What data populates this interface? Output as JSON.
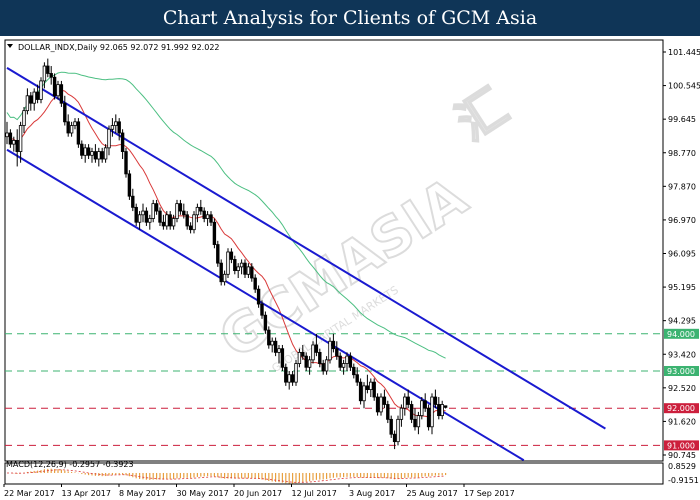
{
  "header": {
    "title": "Chart Analysis for Clients of GCM Asia"
  },
  "watermark": {
    "main": "GCMASIA",
    "sub": "GLOBAL CAPITAL MARKETS",
    "chinese": "汇"
  },
  "chart_data": {
    "type": "candlestick",
    "info_label": "DOLLAR_INDX,Daily  92.065 92.072 91.992 92.022",
    "symbol": "DOLLAR_INDX",
    "timeframe": "Daily",
    "ohlc_last": [
      92.065,
      92.072,
      91.992,
      92.022
    ],
    "y_range": [
      90.58,
      101.9
    ],
    "y_ticks": [
      "101.445",
      "100.545",
      "99.645",
      "98.770",
      "97.870",
      "96.970",
      "96.095",
      "95.195",
      "94.295",
      "93.420",
      "92.520",
      "91.620",
      "90.745"
    ],
    "x_ticks": [
      "22 Mar 2017",
      "13 Apr 2017",
      "8 May 2017",
      "30 May 2017",
      "20 Jun 2017",
      "12 Jul 2017",
      "3 Aug 2017",
      "25 Aug 2017",
      "17 Sep 2017"
    ],
    "levels": [
      {
        "value": 94.0,
        "label": "94.000",
        "color": "#3cb371",
        "style": "dashed"
      },
      {
        "value": 93.0,
        "label": "93.000",
        "color": "#3cb371",
        "style": "dashed"
      },
      {
        "value": 92.0,
        "label": "92.000",
        "color": "#cc1f3c",
        "style": "dashed"
      },
      {
        "value": 91.0,
        "label": "91.000",
        "color": "#cc1f3c",
        "style": "dashed"
      }
    ],
    "channel": {
      "color": "#1a1ad0",
      "upper": [
        [
          0,
          101.15
        ],
        [
          176,
          91.45
        ]
      ],
      "lower": [
        [
          0,
          98.95
        ],
        [
          152,
          90.6
        ]
      ]
    },
    "ma_fast_color": "#d93a3a",
    "ma_slow_color": "#4cbf82",
    "candles": [
      [
        99.3,
        99.7,
        99.1,
        99.4
      ],
      [
        99.4,
        99.5,
        99.0,
        99.1
      ],
      [
        99.1,
        99.3,
        98.9,
        99.2
      ],
      [
        99.2,
        99.5,
        98.5,
        98.9
      ],
      [
        98.9,
        99.7,
        98.6,
        99.6
      ],
      [
        99.6,
        100.1,
        99.4,
        100.0
      ],
      [
        100.0,
        100.6,
        99.9,
        100.4
      ],
      [
        100.4,
        100.5,
        100.0,
        100.2
      ],
      [
        100.2,
        100.6,
        100.0,
        100.5
      ],
      [
        100.5,
        100.7,
        100.2,
        100.3
      ],
      [
        100.3,
        100.9,
        100.2,
        100.8
      ],
      [
        100.8,
        101.3,
        100.6,
        101.2
      ],
      [
        101.2,
        101.4,
        100.9,
        101.0
      ],
      [
        101.0,
        101.2,
        100.7,
        100.9
      ],
      [
        100.9,
        101.0,
        100.3,
        100.4
      ],
      [
        100.4,
        100.8,
        100.3,
        100.7
      ],
      [
        100.7,
        100.8,
        100.1,
        100.2
      ],
      [
        100.2,
        100.4,
        99.6,
        99.7
      ],
      [
        99.7,
        99.9,
        99.3,
        99.4
      ],
      [
        99.4,
        99.7,
        99.3,
        99.6
      ],
      [
        99.6,
        99.8,
        99.5,
        99.7
      ],
      [
        99.7,
        99.8,
        99.0,
        99.1
      ],
      [
        99.1,
        99.2,
        98.7,
        98.8
      ],
      [
        98.8,
        99.1,
        98.6,
        99.0
      ],
      [
        99.0,
        99.1,
        98.7,
        98.8
      ],
      [
        98.8,
        99.0,
        98.6,
        98.9
      ],
      [
        98.9,
        99.1,
        98.6,
        98.7
      ],
      [
        98.7,
        99.0,
        98.5,
        98.9
      ],
      [
        98.9,
        99.0,
        98.6,
        98.7
      ],
      [
        98.7,
        99.1,
        98.6,
        99.0
      ],
      [
        99.0,
        99.6,
        98.8,
        99.5
      ],
      [
        99.5,
        99.8,
        99.3,
        99.6
      ],
      [
        99.6,
        99.9,
        99.4,
        99.7
      ],
      [
        99.7,
        99.8,
        99.2,
        99.4
      ],
      [
        99.4,
        99.5,
        98.7,
        98.9
      ],
      [
        98.9,
        99.0,
        98.2,
        98.3
      ],
      [
        98.3,
        98.4,
        97.6,
        97.7
      ],
      [
        97.7,
        97.9,
        97.3,
        97.4
      ],
      [
        97.4,
        97.5,
        96.9,
        97.0
      ],
      [
        97.0,
        97.3,
        96.8,
        97.2
      ],
      [
        97.2,
        97.5,
        97.0,
        97.3
      ],
      [
        97.3,
        97.4,
        96.9,
        97.0
      ],
      [
        97.0,
        97.2,
        96.8,
        97.1
      ],
      [
        97.1,
        97.6,
        97.0,
        97.5
      ],
      [
        97.5,
        97.6,
        97.2,
        97.3
      ],
      [
        97.3,
        97.4,
        96.9,
        97.0
      ],
      [
        97.0,
        97.2,
        96.8,
        96.9
      ],
      [
        96.9,
        97.3,
        96.8,
        97.2
      ],
      [
        97.2,
        97.3,
        96.8,
        96.9
      ],
      [
        96.9,
        97.2,
        96.8,
        97.1
      ],
      [
        97.1,
        97.6,
        97.0,
        97.5
      ],
      [
        97.5,
        97.6,
        97.2,
        97.3
      ],
      [
        97.3,
        97.5,
        97.1,
        97.2
      ],
      [
        97.2,
        97.3,
        96.8,
        96.9
      ],
      [
        96.9,
        97.0,
        96.7,
        96.8
      ],
      [
        96.8,
        97.3,
        96.7,
        97.2
      ],
      [
        97.2,
        97.5,
        97.0,
        97.4
      ],
      [
        97.4,
        97.6,
        97.2,
        97.3
      ],
      [
        97.3,
        97.4,
        97.0,
        97.1
      ],
      [
        97.1,
        97.3,
        96.9,
        97.2
      ],
      [
        97.2,
        97.3,
        96.9,
        97.0
      ],
      [
        97.0,
        97.1,
        96.3,
        96.4
      ],
      [
        96.4,
        96.5,
        95.8,
        95.9
      ],
      [
        95.9,
        96.0,
        95.3,
        95.4
      ],
      [
        95.4,
        95.7,
        95.3,
        95.6
      ],
      [
        95.6,
        96.3,
        95.5,
        96.2
      ],
      [
        96.2,
        96.3,
        95.9,
        96.0
      ],
      [
        96.0,
        96.1,
        95.6,
        95.7
      ],
      [
        95.7,
        95.9,
        95.5,
        95.8
      ],
      [
        95.8,
        96.0,
        95.6,
        95.9
      ],
      [
        95.9,
        96.0,
        95.5,
        95.6
      ],
      [
        95.6,
        95.9,
        95.5,
        95.8
      ],
      [
        95.8,
        95.9,
        95.4,
        95.5
      ],
      [
        95.5,
        95.6,
        95.1,
        95.2
      ],
      [
        95.2,
        95.3,
        94.7,
        94.8
      ],
      [
        94.8,
        94.9,
        94.4,
        94.5
      ],
      [
        94.5,
        94.6,
        94.0,
        94.1
      ],
      [
        94.1,
        94.2,
        93.6,
        93.7
      ],
      [
        93.7,
        93.9,
        93.5,
        93.8
      ],
      [
        93.8,
        93.9,
        93.4,
        93.5
      ],
      [
        93.5,
        93.7,
        93.2,
        93.6
      ],
      [
        93.6,
        93.7,
        93.0,
        93.1
      ],
      [
        93.1,
        93.2,
        92.6,
        92.7
      ],
      [
        92.7,
        93.0,
        92.5,
        92.9
      ],
      [
        92.9,
        93.0,
        92.6,
        92.7
      ],
      [
        92.7,
        93.3,
        92.6,
        93.2
      ],
      [
        93.2,
        93.6,
        93.1,
        93.5
      ],
      [
        93.5,
        93.7,
        93.3,
        93.4
      ],
      [
        93.4,
        93.5,
        93.0,
        93.1
      ],
      [
        93.1,
        93.4,
        92.9,
        93.3
      ],
      [
        93.3,
        93.8,
        93.2,
        93.7
      ],
      [
        93.7,
        94.0,
        93.4,
        93.5
      ],
      [
        93.5,
        93.6,
        93.1,
        93.2
      ],
      [
        93.2,
        93.3,
        92.9,
        93.0
      ],
      [
        93.0,
        93.4,
        92.9,
        93.3
      ],
      [
        93.3,
        93.9,
        93.2,
        93.8
      ],
      [
        93.8,
        94.0,
        93.5,
        93.6
      ],
      [
        93.6,
        93.8,
        93.3,
        93.4
      ],
      [
        93.4,
        93.5,
        93.0,
        93.1
      ],
      [
        93.1,
        93.3,
        92.9,
        93.2
      ],
      [
        93.2,
        93.5,
        93.0,
        93.4
      ],
      [
        93.4,
        93.5,
        93.0,
        93.1
      ],
      [
        93.1,
        93.2,
        92.8,
        92.9
      ],
      [
        92.9,
        93.1,
        92.6,
        92.7
      ],
      [
        92.7,
        92.8,
        92.1,
        92.2
      ],
      [
        92.2,
        92.7,
        92.0,
        92.6
      ],
      [
        92.6,
        92.9,
        92.4,
        92.5
      ],
      [
        92.5,
        92.8,
        92.3,
        92.7
      ],
      [
        92.7,
        92.8,
        92.2,
        92.3
      ],
      [
        92.3,
        92.4,
        91.8,
        91.9
      ],
      [
        91.9,
        92.4,
        91.8,
        92.3
      ],
      [
        92.3,
        92.5,
        92.0,
        92.1
      ],
      [
        92.1,
        92.2,
        91.6,
        91.7
      ],
      [
        91.7,
        91.8,
        91.2,
        91.3
      ],
      [
        91.3,
        91.4,
        90.9,
        91.1
      ],
      [
        91.1,
        91.8,
        91.0,
        91.7
      ],
      [
        91.7,
        92.1,
        91.5,
        92.0
      ],
      [
        92.0,
        92.4,
        91.8,
        92.3
      ],
      [
        92.3,
        92.5,
        92.0,
        92.1
      ],
      [
        92.1,
        92.2,
        91.6,
        91.7
      ],
      [
        91.7,
        92.0,
        91.4,
        91.5
      ],
      [
        91.5,
        91.9,
        91.3,
        91.8
      ],
      [
        91.8,
        92.3,
        91.7,
        92.2
      ],
      [
        92.2,
        92.4,
        91.9,
        92.0
      ],
      [
        92.0,
        92.1,
        91.4,
        91.5
      ],
      [
        91.5,
        92.4,
        91.3,
        92.3
      ],
      [
        92.3,
        92.5,
        92.0,
        92.1
      ],
      [
        92.1,
        92.3,
        91.7,
        91.8
      ],
      [
        91.8,
        92.2,
        91.7,
        92.1
      ],
      [
        92.065,
        92.072,
        91.992,
        92.022
      ]
    ],
    "macd": {
      "label": "MACD(12,26,9) -0.2957 -0.3923",
      "params": "12,26,9",
      "main": -0.2957,
      "signal": -0.3923,
      "y_ticks": [
        "0.8529",
        "-0.9151"
      ],
      "range": [
        -1.05,
        0.95
      ],
      "bar_color": "#e8a040",
      "signal_color": "#d93a3a"
    }
  }
}
